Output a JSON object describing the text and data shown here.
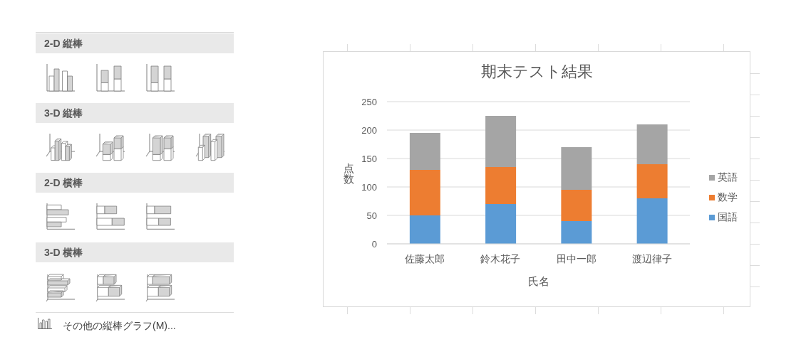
{
  "chart_data": [
    {
      "type": "other",
      "annotations": [
        "2-D 縦棒",
        "3-D 縦棒",
        "2-D 横棒",
        "3-D 横棒",
        "その他の縦棒グラフ(M)..."
      ]
    },
    {
      "type": "bar",
      "title": "期末テスト結果",
      "xlabel": "氏名",
      "ylabel": "点数",
      "categories": [
        "佐藤太郎",
        "鈴木花子",
        "田中一郎",
        "渡辺律子"
      ],
      "series": [
        {
          "name": "国語",
          "color": "#5b9bd5",
          "values": [
            50,
            70,
            40,
            80
          ]
        },
        {
          "name": "数学",
          "color": "#ed7d31",
          "values": [
            80,
            65,
            55,
            60
          ]
        },
        {
          "name": "英語",
          "color": "#a5a5a5",
          "values": [
            65,
            90,
            75,
            70
          ]
        }
      ],
      "stacked": true,
      "ylim": [
        0,
        250
      ],
      "yticks": [
        0,
        50,
        100,
        150,
        200,
        250
      ],
      "grid": "y",
      "legend": "right"
    }
  ]
}
